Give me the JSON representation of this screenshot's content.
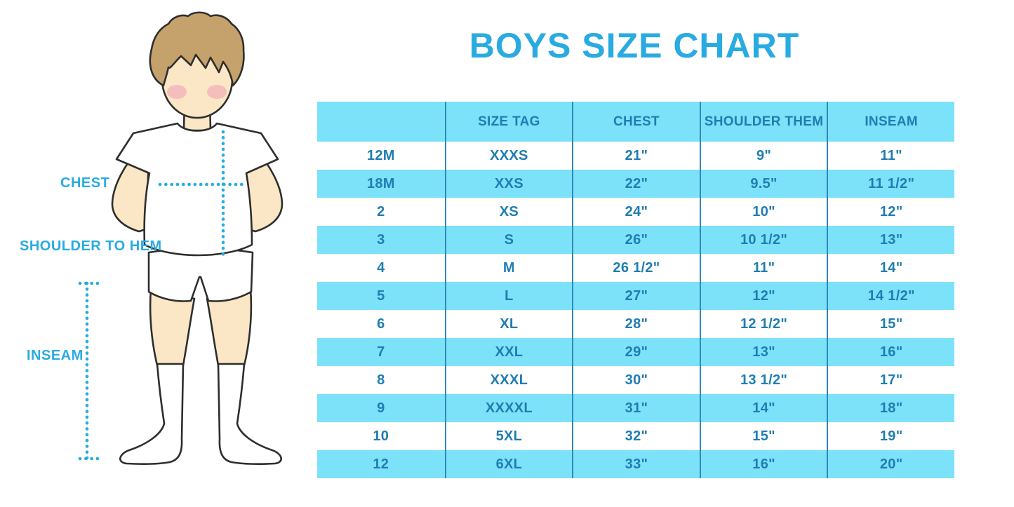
{
  "title": "BOYS SIZE CHART",
  "figure": {
    "labels": {
      "chest": "CHEST",
      "shoulder_to_hem": "SHOULDER TO HEM",
      "inseam": "INSEAM"
    }
  },
  "chart_data": {
    "type": "table",
    "title": "BOYS SIZE CHART",
    "columns": [
      "",
      "SIZE TAG",
      "CHEST",
      "SHOULDER THEM",
      "INSEAM"
    ],
    "rows": [
      [
        "12M",
        "XXXS",
        "21\"",
        "9\"",
        "11\""
      ],
      [
        "18M",
        "XXS",
        "22\"",
        "9.5\"",
        "11 1/2\""
      ],
      [
        "2",
        "XS",
        "24\"",
        "10\"",
        "12\""
      ],
      [
        "3",
        "S",
        "26\"",
        "10 1/2\"",
        "13\""
      ],
      [
        "4",
        "M",
        "26 1/2\"",
        "11\"",
        "14\""
      ],
      [
        "5",
        "L",
        "27\"",
        "12\"",
        "14 1/2\""
      ],
      [
        "6",
        "XL",
        "28\"",
        "12 1/2\"",
        "15\""
      ],
      [
        "7",
        "XXL",
        "29\"",
        "13\"",
        "16\""
      ],
      [
        "8",
        "XXXL",
        "30\"",
        "13 1/2\"",
        "17\""
      ],
      [
        "9",
        "XXXXL",
        "31\"",
        "14\"",
        "18\""
      ],
      [
        "10",
        "5XL",
        "32\"",
        "15\"",
        "19\""
      ],
      [
        "12",
        "6XL",
        "33\"",
        "16\"",
        "20\""
      ]
    ],
    "row_stripe_pattern": "header blue, then rows alternate white / blue starting with white",
    "legend_position": "none",
    "grid": "vertical column separators only"
  },
  "colors": {
    "page_bg": "#FFFFFF",
    "accent_blue": "#29ABE2",
    "table_row_blue": "#7BE2F9",
    "table_text_blue": "#1F7DB2",
    "table_border_blue": "#2E89B8",
    "skin": "#FBE7C5",
    "hair_brown": "#C5A26C",
    "blush_pink": "#F0A3B8",
    "outline": "#2E2E2E"
  }
}
